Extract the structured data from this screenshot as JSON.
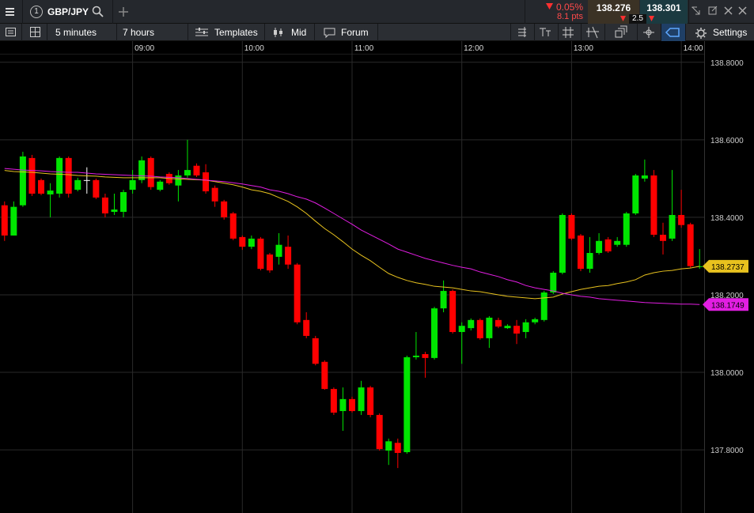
{
  "toolbar": {
    "instrument_number": "1",
    "instrument": "GBP/JPY",
    "change_percent": "0.05%",
    "change_points": "8.1 pts",
    "sell": "138.276",
    "buy": "138.301",
    "spread": "2.5"
  },
  "menu": {
    "interval": "5 minutes",
    "span": "7 hours",
    "templates": "Templates",
    "price_type": "Mid",
    "forum": "Forum",
    "settings": "Settings"
  },
  "chart_data": {
    "type": "candlestick",
    "categories": [
      null,
      null,
      null,
      null,
      null,
      null,
      null,
      null,
      null,
      null,
      null,
      null,
      null,
      null,
      "09:00",
      null,
      null,
      null,
      null,
      null,
      null,
      null,
      null,
      null,
      null,
      null,
      "10:00",
      null,
      null,
      null,
      null,
      null,
      null,
      null,
      null,
      null,
      null,
      null,
      "11:00",
      null,
      null,
      null,
      null,
      null,
      null,
      null,
      null,
      null,
      null,
      null,
      "12:00",
      null,
      null,
      null,
      null,
      null,
      null,
      null,
      null,
      null,
      null,
      null,
      "13:00",
      null,
      null,
      null,
      null,
      null,
      null,
      null,
      null,
      null,
      null,
      null,
      "14:00",
      null,
      null
    ],
    "open": [
      138.431,
      138.353,
      138.431,
      138.553,
      138.496,
      138.459,
      138.461,
      138.553,
      138.471,
      138.496,
      138.496,
      138.451,
      138.414,
      138.414,
      138.471,
      138.496,
      138.553,
      138.471,
      138.512,
      138.482,
      138.508,
      138.533,
      138.516,
      138.476,
      138.441,
      138.41,
      138.349,
      138.324,
      138.345,
      138.304,
      138.298,
      138.324,
      138.278,
      138.135,
      138.088,
      138.027,
      137.957,
      137.9,
      137.931,
      137.9,
      137.961,
      137.89,
      137.798,
      137.818,
      137.794,
      138.039,
      138.047,
      138.037,
      138.165,
      138.21,
      138.104,
      138.114,
      138.135,
      138.088,
      138.135,
      138.114,
      138.12,
      138.104,
      138.129,
      138.135,
      138.206,
      138.257,
      138.406,
      138.353,
      138.267,
      138.308,
      138.343,
      138.329,
      138.329,
      138.41,
      138.5,
      138.508,
      138.355,
      138.345,
      138.406,
      138.382,
      138.272
    ],
    "high": [
      138.441,
      138.441,
      138.569,
      138.561,
      138.5,
      138.488,
      138.557,
      138.557,
      138.502,
      138.529,
      138.5,
      138.461,
      138.461,
      138.471,
      138.522,
      138.557,
      138.557,
      138.496,
      138.516,
      138.522,
      138.6,
      138.539,
      138.537,
      138.482,
      138.445,
      138.414,
      138.353,
      138.353,
      138.349,
      138.308,
      138.359,
      138.353,
      138.282,
      138.155,
      138.094,
      138.031,
      137.961,
      137.961,
      137.937,
      137.978,
      137.965,
      137.894,
      137.829,
      137.829,
      138.043,
      138.104,
      138.053,
      138.169,
      138.237,
      138.214,
      138.129,
      138.139,
      138.139,
      138.145,
      138.141,
      138.124,
      138.135,
      138.137,
      138.141,
      138.21,
      138.261,
      138.41,
      138.41,
      138.357,
      138.349,
      138.359,
      138.349,
      138.349,
      138.414,
      138.512,
      138.549,
      138.522,
      138.386,
      138.522,
      138.471,
      138.386,
      138.318
    ],
    "low": [
      138.339,
      138.353,
      138.427,
      138.455,
      138.457,
      138.4,
      138.451,
      138.451,
      138.467,
      138.461,
      138.447,
      138.4,
      138.406,
      138.4,
      138.461,
      138.488,
      138.471,
      138.467,
      138.484,
      138.441,
      138.502,
      138.504,
      138.461,
      138.427,
      138.394,
      138.341,
      138.316,
      138.318,
      138.263,
      138.257,
      138.278,
      138.267,
      138.124,
      138.088,
      138.018,
      137.955,
      137.89,
      137.849,
      137.896,
      137.89,
      137.884,
      137.798,
      137.761,
      137.753,
      137.79,
      138.033,
      137.986,
      138.033,
      138.155,
      138.1,
      138.022,
      138.108,
      138.084,
      138.063,
      138.114,
      138.112,
      138.073,
      138.088,
      138.124,
      138.131,
      138.202,
      138.253,
      138.341,
      138.261,
      138.257,
      138.304,
      138.308,
      138.324,
      138.324,
      138.406,
      138.492,
      138.349,
      138.304,
      138.339,
      138.373,
      138.269,
      138.267
    ],
    "close": [
      138.353,
      138.427,
      138.557,
      138.461,
      138.461,
      138.469,
      138.553,
      138.461,
      138.496,
      138.496,
      138.451,
      138.41,
      138.42,
      138.465,
      138.496,
      138.547,
      138.478,
      138.492,
      138.488,
      138.508,
      138.522,
      138.508,
      138.467,
      138.441,
      138.4,
      138.345,
      138.324,
      138.345,
      138.267,
      138.263,
      138.329,
      138.278,
      138.129,
      138.094,
      138.022,
      137.957,
      137.896,
      137.931,
      137.9,
      137.961,
      137.89,
      137.802,
      137.822,
      137.792,
      138.039,
      138.043,
      138.037,
      138.165,
      138.21,
      138.104,
      138.12,
      138.135,
      138.088,
      138.141,
      138.118,
      138.12,
      138.1,
      138.129,
      138.137,
      138.206,
      138.257,
      138.406,
      138.345,
      138.267,
      138.308,
      138.339,
      138.312,
      138.339,
      138.41,
      138.508,
      138.508,
      138.355,
      138.339,
      138.406,
      138.38,
      138.274,
      138.2737
    ],
    "up_color": "#00e600",
    "down_color": "#ff0000",
    "doji_color": "#ffffff",
    "series": [
      {
        "color": "#e8c21e",
        "values": [
          138.521,
          138.518,
          138.517,
          138.516,
          138.514,
          138.512,
          138.511,
          138.51,
          138.508,
          138.507,
          138.506,
          138.504,
          138.503,
          138.502,
          138.502,
          138.502,
          138.502,
          138.502,
          138.5,
          138.499,
          138.498,
          138.497,
          138.496,
          138.492,
          138.488,
          138.484,
          138.478,
          138.471,
          138.467,
          138.461,
          138.451,
          138.441,
          138.427,
          138.41,
          138.39,
          138.371,
          138.355,
          138.337,
          138.318,
          138.302,
          138.288,
          138.271,
          138.255,
          138.245,
          138.237,
          138.231,
          138.227,
          138.222,
          138.22,
          138.218,
          138.214,
          138.21,
          138.208,
          138.204,
          138.2,
          138.196,
          138.194,
          138.192,
          138.19,
          138.192,
          138.194,
          138.202,
          138.208,
          138.214,
          138.218,
          138.222,
          138.224,
          138.229,
          138.233,
          138.239,
          138.251,
          138.257,
          138.261,
          138.263,
          138.267,
          138.269,
          138.2737
        ]
      },
      {
        "color": "#e21ee2",
        "values": [
          138.526,
          138.524,
          138.522,
          138.521,
          138.52,
          138.518,
          138.517,
          138.516,
          138.516,
          138.514,
          138.512,
          138.511,
          138.51,
          138.509,
          138.508,
          138.507,
          138.506,
          138.504,
          138.503,
          138.502,
          138.5,
          138.498,
          138.496,
          138.494,
          138.492,
          138.489,
          138.486,
          138.482,
          138.478,
          138.471,
          138.467,
          138.461,
          138.453,
          138.447,
          138.437,
          138.424,
          138.41,
          138.396,
          138.382,
          138.367,
          138.355,
          138.343,
          138.331,
          138.318,
          138.31,
          138.302,
          138.294,
          138.288,
          138.282,
          138.276,
          138.271,
          138.267,
          138.259,
          138.253,
          138.247,
          138.239,
          138.233,
          138.224,
          138.218,
          138.214,
          138.21,
          138.204,
          138.2,
          138.196,
          138.194,
          138.19,
          138.188,
          138.186,
          138.184,
          138.182,
          138.18,
          138.179,
          138.178,
          138.177,
          138.176,
          138.176,
          138.1749
        ]
      }
    ],
    "ylim": [
      137.637,
      138.822
    ],
    "yticks": [
      {
        "value": 137.8,
        "label": "137.8000"
      },
      {
        "value": 138.0,
        "label": "138.0000"
      },
      {
        "value": 138.2,
        "label": "138.2000"
      },
      {
        "value": 138.4,
        "label": "138.4000"
      },
      {
        "value": 138.6,
        "label": "138.6000"
      },
      {
        "value": 138.8,
        "label": "138.8000"
      }
    ],
    "grid": true
  }
}
